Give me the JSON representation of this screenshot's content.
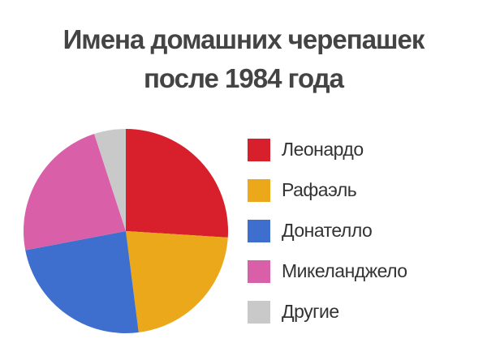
{
  "chart_data": {
    "type": "pie",
    "title": [
      "Имена домашних черепашек",
      "после 1984 года"
    ],
    "categories": [
      "Леонардо",
      "Рафаэль",
      "Донателло",
      "Микеланджело",
      "Другие"
    ],
    "values": [
      26,
      22,
      24,
      23,
      5
    ],
    "colors": [
      "#d7202b",
      "#eba81a",
      "#3f6fce",
      "#d85fa8",
      "#c9c9c9"
    ],
    "legend": "right"
  }
}
